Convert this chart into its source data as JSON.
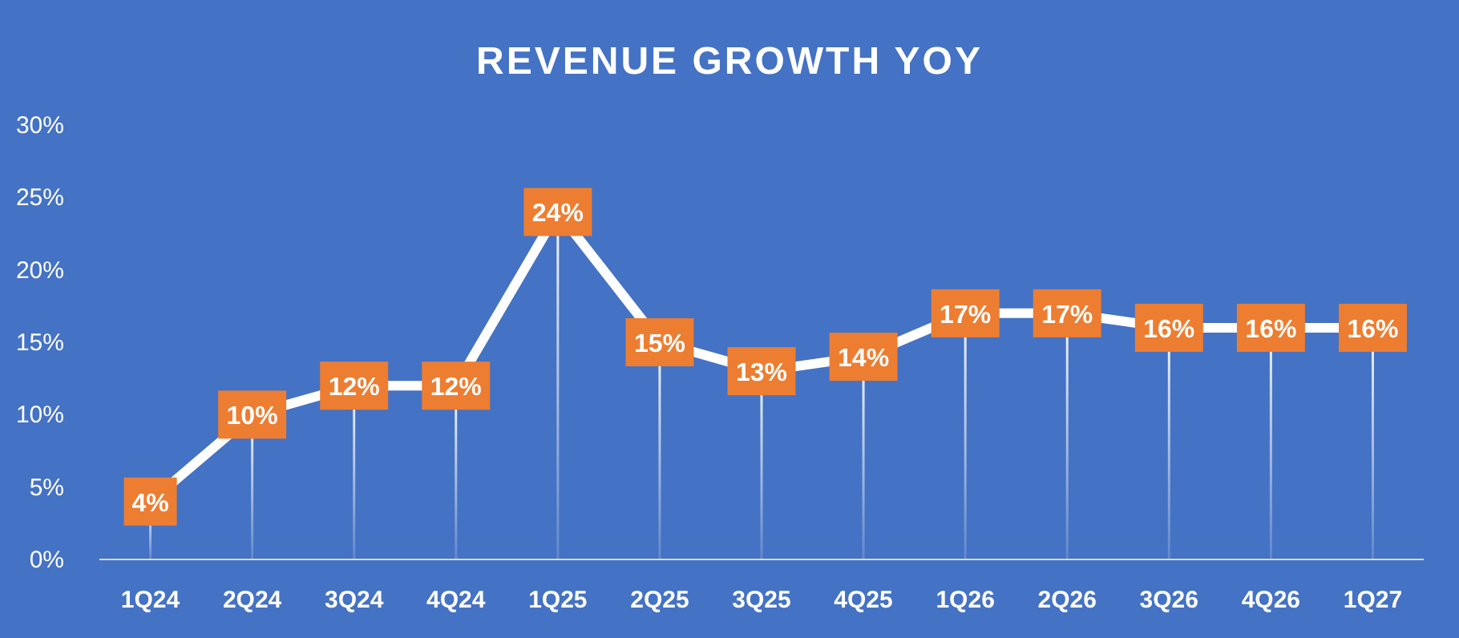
{
  "chart_data": {
    "type": "line",
    "title": "REVENUE GROWTH YOY",
    "categories": [
      "1Q24",
      "2Q24",
      "3Q24",
      "4Q24",
      "1Q25",
      "2Q25",
      "3Q25",
      "4Q25",
      "1Q26",
      "2Q26",
      "3Q26",
      "4Q26",
      "1Q27"
    ],
    "series": [
      {
        "color": "#ffffff",
        "values": [
          4,
          10,
          12,
          12,
          24,
          15,
          13,
          14,
          17,
          17,
          16,
          16,
          16
        ],
        "value_labels": [
          "4%",
          "10%",
          "12%",
          "12%",
          "24%",
          "15%",
          "13%",
          "14%",
          "17%",
          "17%",
          "16%",
          "16%",
          "16%"
        ]
      }
    ],
    "ylim": [
      0,
      30
    ],
    "yticks": [
      {
        "value": 0,
        "label": "0%"
      },
      {
        "value": 5,
        "label": "5%"
      },
      {
        "value": 10,
        "label": "10%"
      },
      {
        "value": 15,
        "label": "15%"
      },
      {
        "value": 20,
        "label": "20%"
      },
      {
        "value": 25,
        "label": "25%"
      },
      {
        "value": 30,
        "label": "30%"
      }
    ],
    "marker": "square",
    "line_style": "solid"
  }
}
